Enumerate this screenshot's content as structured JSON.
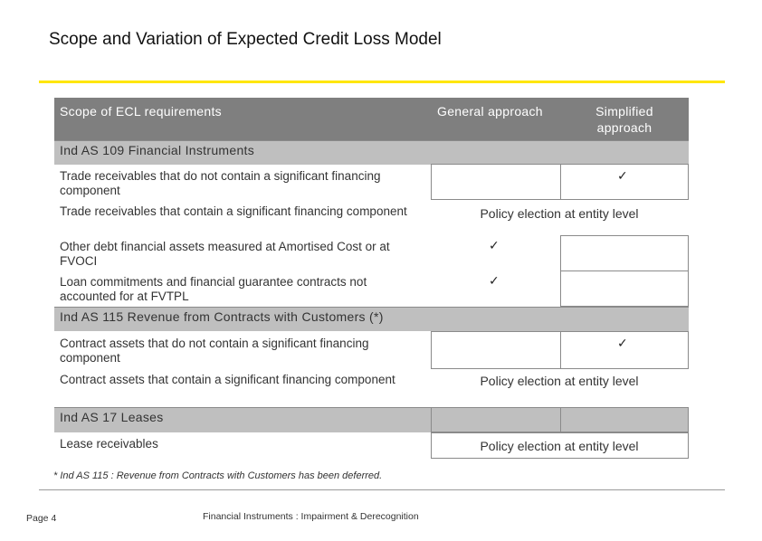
{
  "title": "Scope and Variation of Expected Credit Loss Model",
  "table": {
    "headers": {
      "scope": "Scope of ECL requirements",
      "general": "General approach",
      "simplified_line1": "Simplified",
      "simplified_line2": "approach"
    },
    "sections": [
      {
        "title": "Ind AS 109 Financial Instruments",
        "rows": [
          {
            "label": "Trade receivables that do not contain a significant financing component",
            "general": "",
            "simplified": "✓",
            "policy": ""
          },
          {
            "label": "Trade receivables that contain a significant financing component",
            "general": "",
            "simplified": "",
            "policy": "Policy election at entity level"
          },
          {
            "label": "Other debt financial assets measured at Amortised Cost or at FVOCI",
            "general": "✓",
            "simplified": "",
            "policy": ""
          },
          {
            "label": "Loan commitments and financial guarantee contracts not accounted for at FVTPL",
            "general": "✓",
            "simplified": "",
            "policy": ""
          }
        ]
      },
      {
        "title": "Ind AS 115 Revenue from Contracts with Customers (*)",
        "rows": [
          {
            "label": "Contract assets that do not contain a significant financing component",
            "general": "",
            "simplified": "✓",
            "policy": ""
          },
          {
            "label": "Contract assets that contain a significant financing component",
            "general": "",
            "simplified": "",
            "policy": "Policy election at entity level"
          }
        ]
      },
      {
        "title": "Ind AS 17 Leases",
        "rows": [
          {
            "label": "Lease receivables",
            "general": "",
            "simplified": "",
            "policy": "Policy election at entity level"
          }
        ]
      }
    ]
  },
  "footnote": "* Ind AS 115 : Revenue from Contracts with Customers has been deferred.",
  "footer": {
    "page": "Page 4",
    "title": "Financial Instruments : Impairment & Derecognition"
  }
}
